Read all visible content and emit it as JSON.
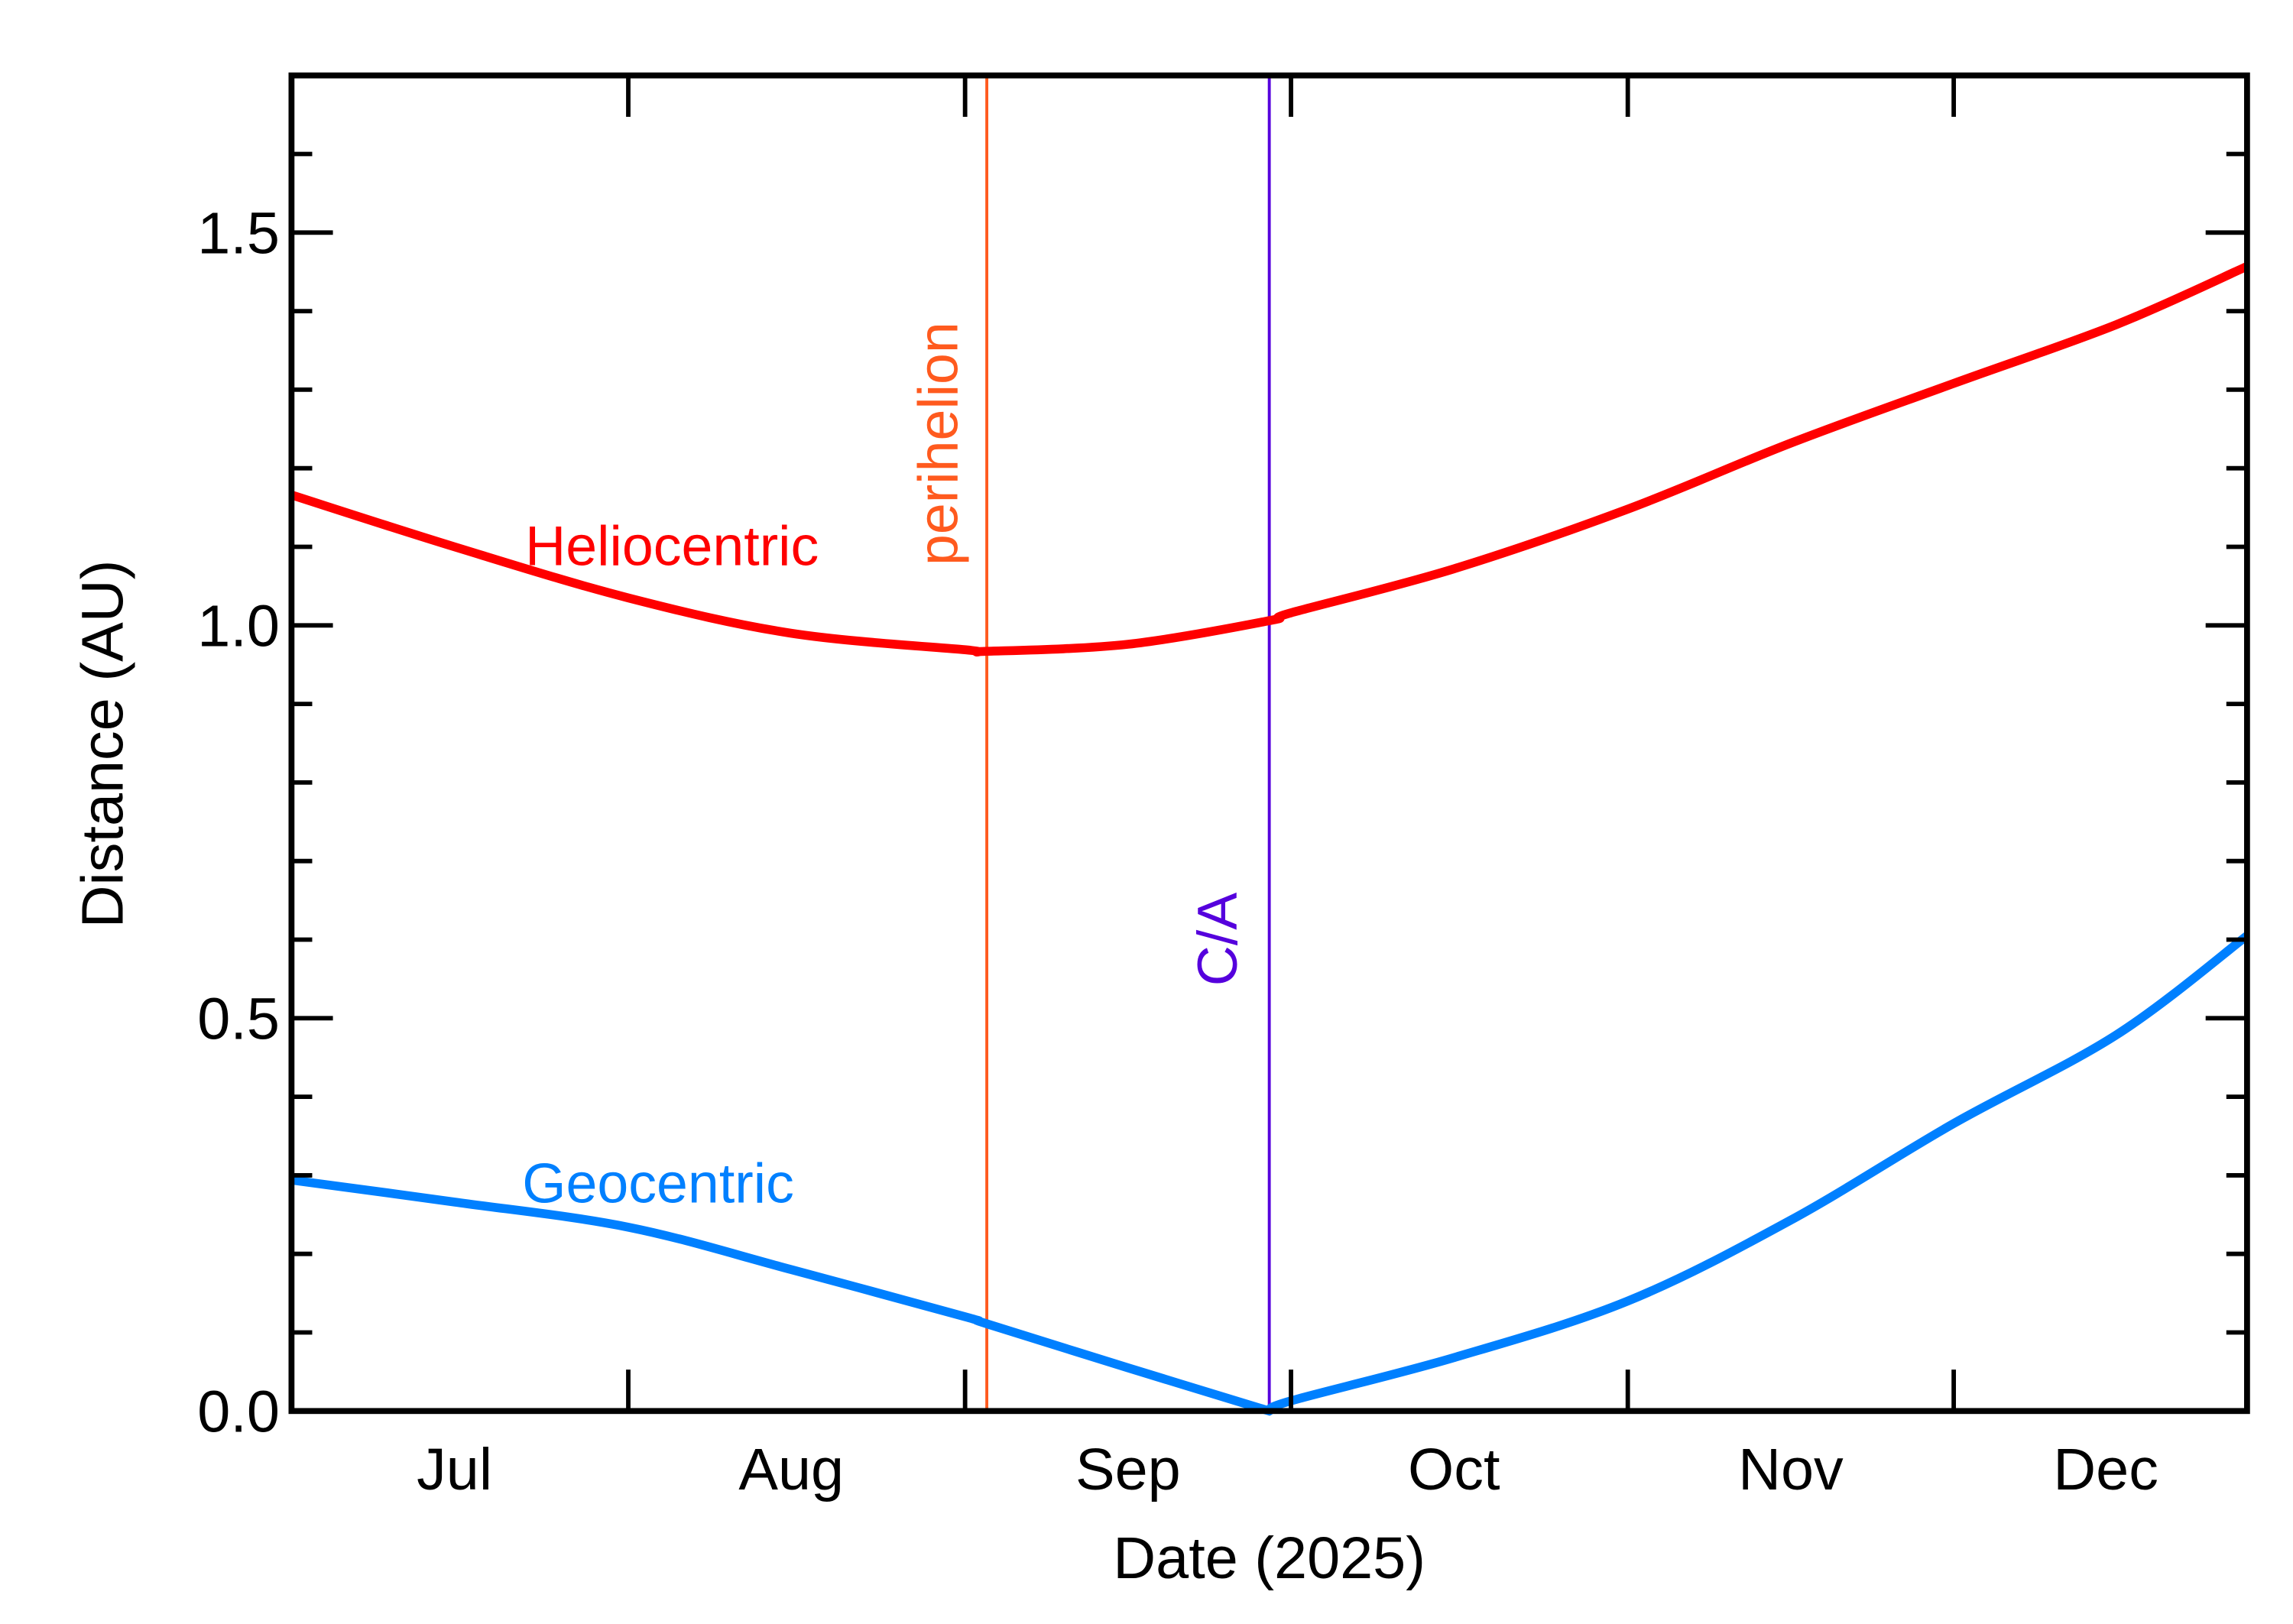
{
  "chart_data": {
    "type": "line",
    "xlabel": "Date (2025)",
    "ylabel": "Distance (AU)",
    "xlim": [
      "2025-07-01",
      "2025-12-28"
    ],
    "ylim": [
      0,
      1.7
    ],
    "yticks": [
      0.0,
      0.5,
      1.0,
      1.5
    ],
    "ytick_labels": [
      "0.0",
      "0.5",
      "1.0",
      "1.5"
    ],
    "yminor_step": 0.1,
    "xticks": [
      "2025-08-01",
      "2025-09-01",
      "2025-10-01",
      "2025-11-01",
      "2025-12-01"
    ],
    "xtick_labels": [
      {
        "label": "Jul",
        "at": "2025-07-16"
      },
      {
        "label": "Aug",
        "at": "2025-08-16"
      },
      {
        "label": "Sep",
        "at": "2025-09-16"
      },
      {
        "label": "Oct",
        "at": "2025-10-16"
      },
      {
        "label": "Nov",
        "at": "2025-11-16"
      },
      {
        "label": "Dec",
        "at": "2025-12-15"
      }
    ],
    "grid": false,
    "x": [
      "2025-07-01",
      "2025-07-16",
      "2025-08-01",
      "2025-08-16",
      "2025-09-01",
      "2025-09-03",
      "2025-09-16",
      "2025-09-29",
      "2025-10-01",
      "2025-10-16",
      "2025-11-01",
      "2025-11-16",
      "2025-12-01",
      "2025-12-16",
      "2025-12-28"
    ],
    "series": [
      {
        "name": "Heliocentric",
        "color": "#ff0000",
        "values": [
          1.166,
          1.1,
          1.035,
          0.99,
          0.969,
          0.967,
          0.976,
          1.006,
          1.016,
          1.072,
          1.148,
          1.232,
          1.308,
          1.383,
          1.457
        ]
      },
      {
        "name": "Geocentric",
        "color": "#0080ff",
        "values": [
          0.294,
          0.266,
          0.234,
          0.18,
          0.12,
          0.111,
          0.055,
          0.0,
          0.013,
          0.068,
          0.14,
          0.243,
          0.366,
          0.479,
          0.605
        ]
      }
    ],
    "events": [
      {
        "label": "perihelion",
        "date": "2025-09-03",
        "color": "#ff5a1e"
      },
      {
        "label": "C/A",
        "date": "2025-09-29",
        "color": "#5500dd"
      }
    ]
  }
}
